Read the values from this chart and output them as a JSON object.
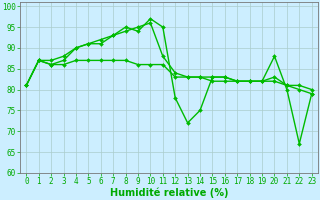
{
  "xlabel": "Humidité relative (%)",
  "background_color": "#cceeff",
  "grid_color": "#aacccc",
  "line_color": "#00bb00",
  "tick_color": "#00aa00",
  "marker": "D",
  "markersize": 2.0,
  "linewidth": 1.0,
  "ylim": [
    60,
    101
  ],
  "xlim": [
    -0.5,
    23.5
  ],
  "yticks": [
    60,
    65,
    70,
    75,
    80,
    85,
    90,
    95,
    100
  ],
  "xticks": [
    0,
    1,
    2,
    3,
    4,
    5,
    6,
    7,
    8,
    9,
    10,
    11,
    12,
    13,
    14,
    15,
    16,
    17,
    18,
    19,
    20,
    21,
    22,
    23
  ],
  "series": [
    [
      81,
      87,
      86,
      87,
      90,
      91,
      91,
      93,
      95,
      94,
      97,
      95,
      78,
      72,
      75,
      83,
      83,
      82,
      82,
      82,
      88,
      80,
      67,
      79
    ],
    [
      81,
      87,
      86,
      86,
      87,
      87,
      87,
      87,
      87,
      86,
      86,
      86,
      83,
      83,
      83,
      83,
      83,
      82,
      82,
      82,
      82,
      81,
      81,
      80
    ],
    [
      81,
      87,
      87,
      88,
      90,
      91,
      92,
      93,
      94,
      95,
      96,
      88,
      84,
      83,
      83,
      82,
      82,
      82,
      82,
      82,
      83,
      81,
      80,
      79
    ]
  ]
}
